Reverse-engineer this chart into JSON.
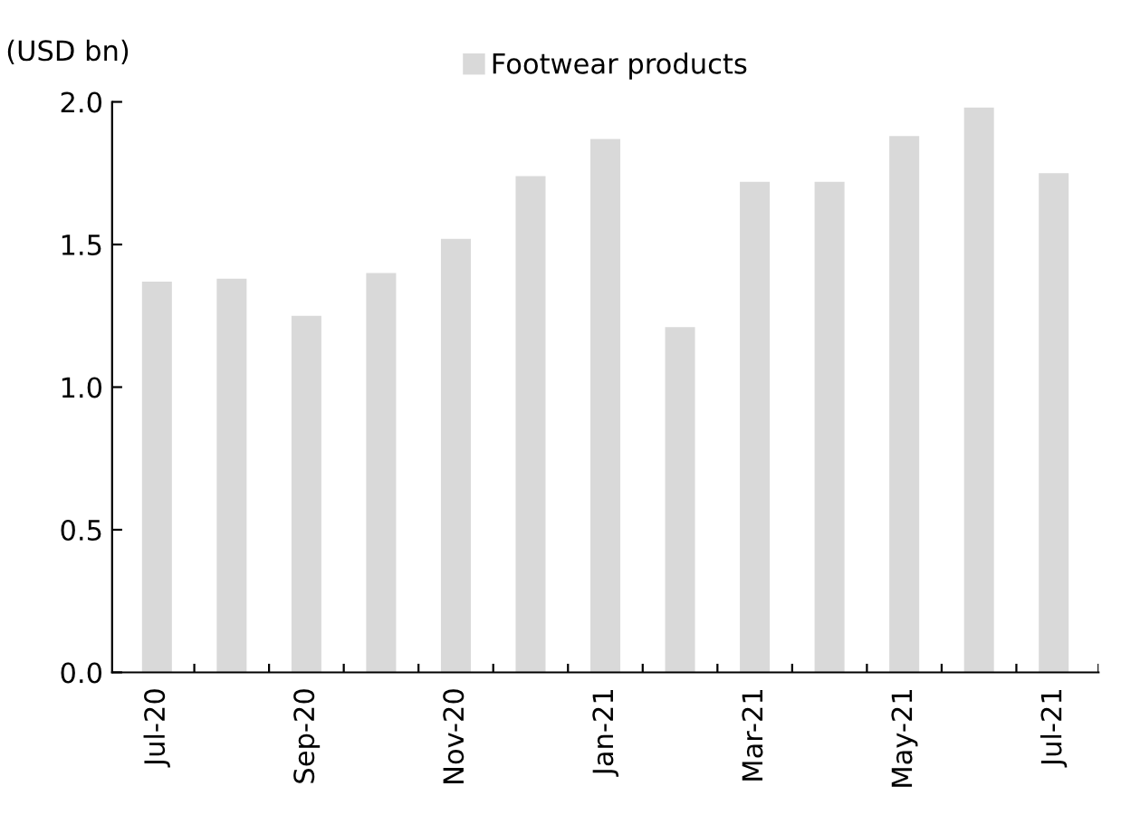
{
  "chart_data": {
    "type": "bar",
    "ylabel": "(USD bn)",
    "categories": [
      "Jul-20",
      null,
      "Sep-20",
      null,
      "Nov-20",
      null,
      "Jan-21",
      null,
      "Mar-21",
      null,
      "May-21",
      null,
      "Jul-21"
    ],
    "series": [
      {
        "name": "Footwear products",
        "color": "#d9d9d9",
        "values": [
          1.37,
          1.38,
          1.25,
          1.4,
          1.52,
          1.74,
          1.87,
          1.21,
          1.72,
          1.72,
          1.88,
          1.98,
          1.75
        ]
      }
    ],
    "ylim": [
      0,
      2.0
    ],
    "yticks": [
      {
        "value": 0,
        "label": "0.0"
      },
      {
        "value": 0.5,
        "label": "0.5"
      },
      {
        "value": 1.0,
        "label": "1.0"
      },
      {
        "value": 1.5,
        "label": "1.5"
      },
      {
        "value": 2.0,
        "label": "2.0"
      }
    ],
    "legend": "top",
    "grid": false
  }
}
